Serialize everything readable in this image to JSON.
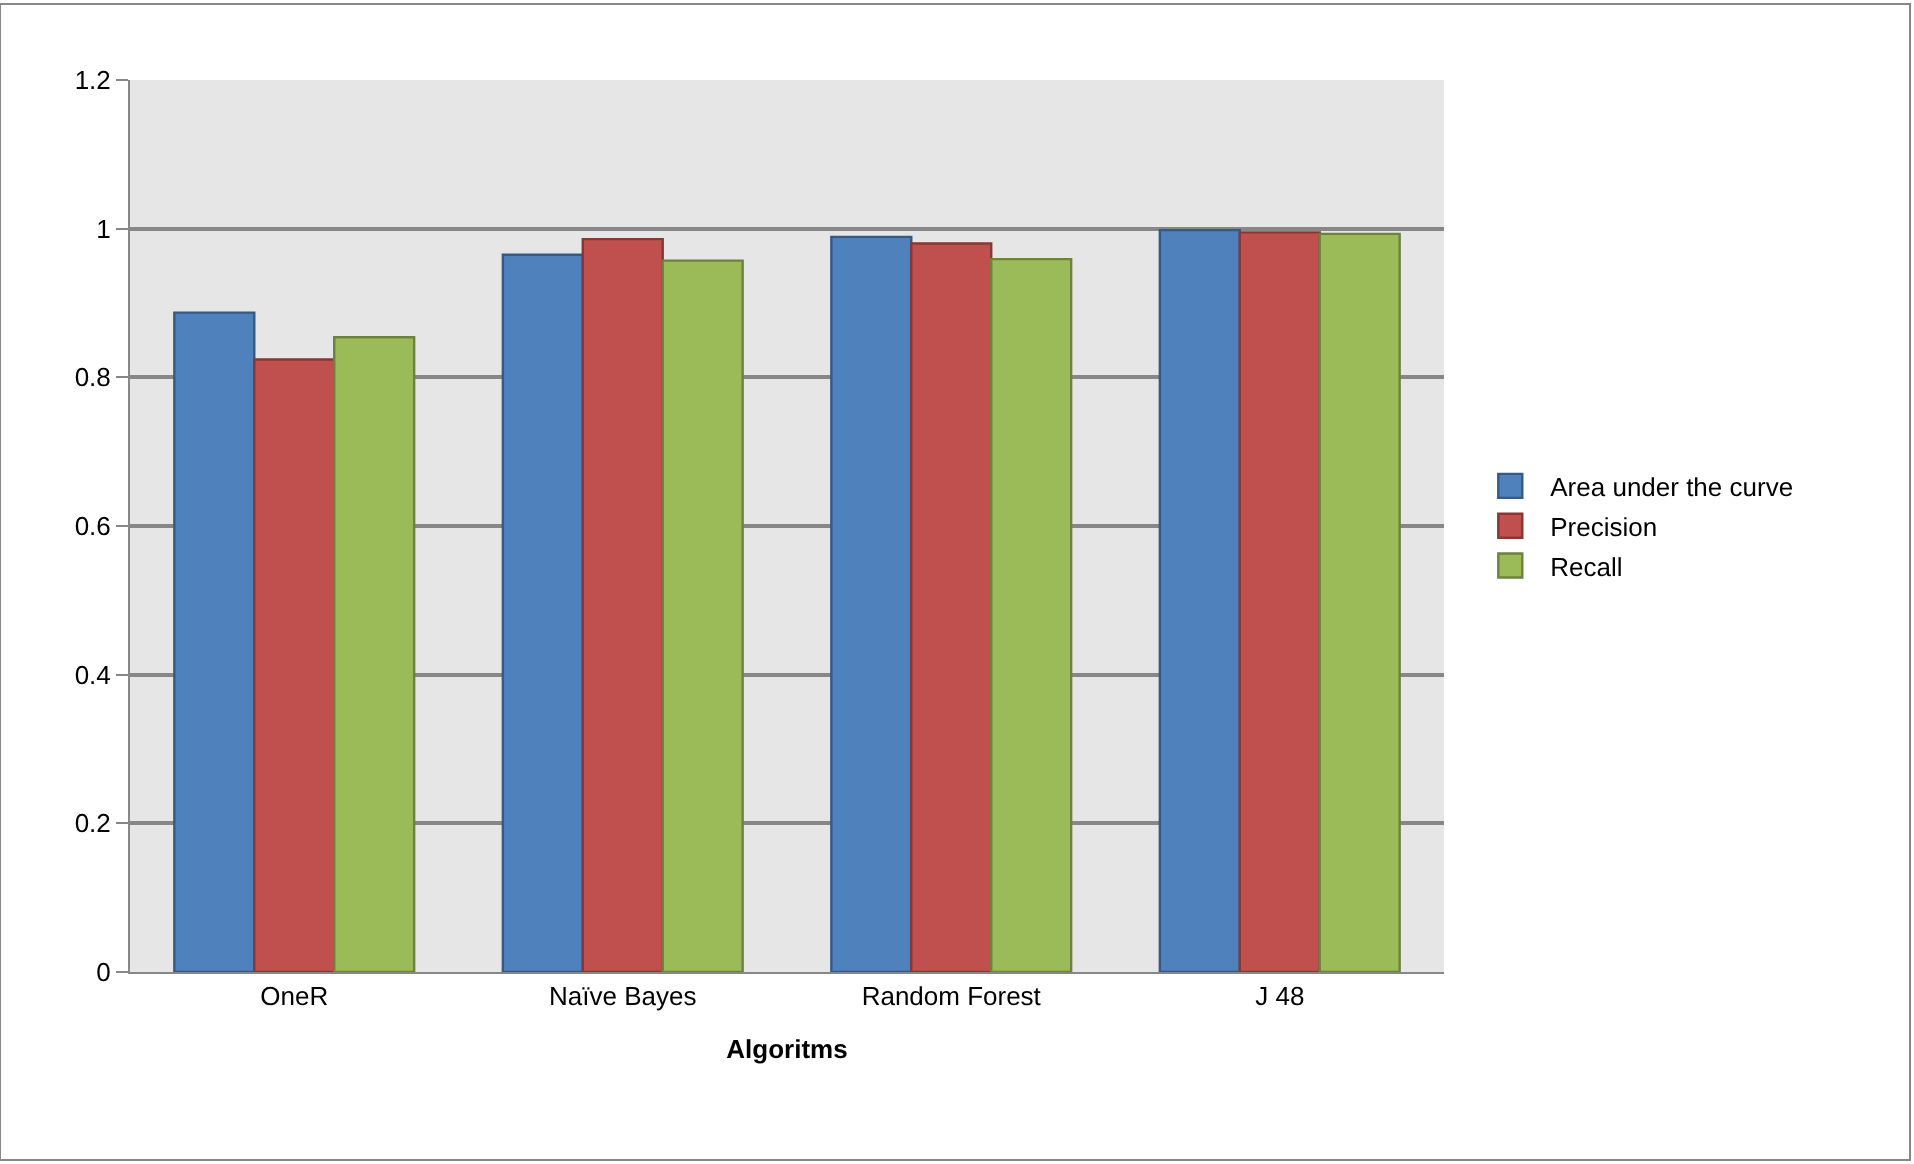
{
  "chart_data": {
    "type": "bar",
    "xlabel": "Algoritms",
    "categories": [
      "OneR",
      "Naïve Bayes",
      "Random Forest",
      "J 48"
    ],
    "series": [
      {
        "name": "Area under the curve",
        "color": "#4f81bd",
        "values": [
          0.887,
          0.965,
          0.989,
          0.998
        ]
      },
      {
        "name": "Precision",
        "color": "#c0504d",
        "values": [
          0.824,
          0.986,
          0.98,
          0.995
        ]
      },
      {
        "name": "Recall",
        "color": "#9bbb59",
        "values": [
          0.854,
          0.957,
          0.959,
          0.993
        ]
      }
    ],
    "ylim": [
      0,
      1.2
    ],
    "yticks": [
      0,
      0.2,
      0.4,
      0.6,
      0.8,
      1,
      1.2
    ],
    "grid": "y",
    "legend": "right"
  }
}
